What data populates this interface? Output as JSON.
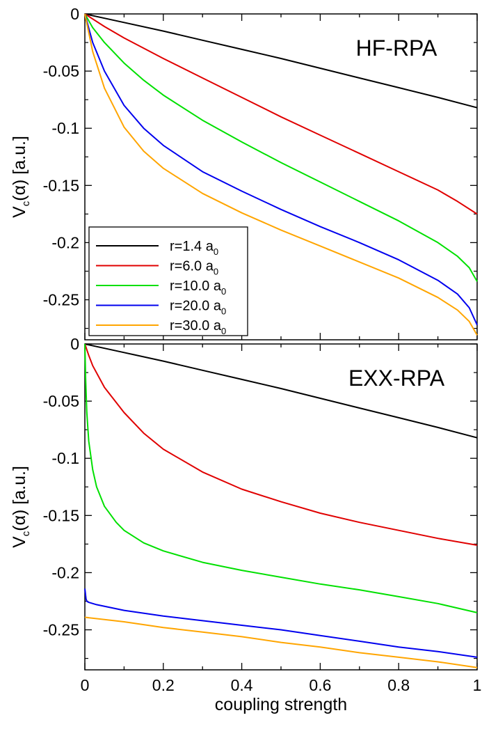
{
  "chart_data": [
    {
      "type": "line",
      "title": "HF-RPA",
      "xlabel": "",
      "ylabel": "V_c(α) [a.u.]",
      "xlim": [
        0,
        1
      ],
      "ylim": [
        -0.285,
        0
      ],
      "grid": false,
      "legend_position": "bottom-left",
      "y_ticks": [
        "0",
        "-0.05",
        "-0.1",
        "-0.15",
        "-0.2",
        "-0.25"
      ],
      "series": [
        {
          "name": "r=1.4 a0",
          "color": "#000000",
          "x": [
            0,
            0.1,
            0.2,
            0.3,
            0.4,
            0.5,
            0.6,
            0.7,
            0.8,
            0.9,
            1.0
          ],
          "y": [
            0,
            -0.0075,
            -0.015,
            -0.023,
            -0.031,
            -0.039,
            -0.0475,
            -0.056,
            -0.0645,
            -0.073,
            -0.082
          ]
        },
        {
          "name": "r=6.0 a0",
          "color": "#e00000",
          "x": [
            0,
            0.05,
            0.1,
            0.2,
            0.3,
            0.4,
            0.5,
            0.6,
            0.7,
            0.8,
            0.9,
            0.95,
            1.0
          ],
          "y": [
            0,
            -0.011,
            -0.021,
            -0.039,
            -0.056,
            -0.073,
            -0.09,
            -0.106,
            -0.122,
            -0.138,
            -0.154,
            -0.164,
            -0.175
          ]
        },
        {
          "name": "r=10.0 a0",
          "color": "#00e000",
          "x": [
            0,
            0.02,
            0.05,
            0.1,
            0.15,
            0.2,
            0.3,
            0.4,
            0.5,
            0.6,
            0.7,
            0.8,
            0.9,
            0.95,
            0.98,
            1.0
          ],
          "y": [
            0,
            -0.012,
            -0.025,
            -0.043,
            -0.058,
            -0.071,
            -0.093,
            -0.112,
            -0.13,
            -0.147,
            -0.164,
            -0.181,
            -0.2,
            -0.212,
            -0.222,
            -0.234
          ]
        },
        {
          "name": "r=20.0 a0",
          "color": "#0000ee",
          "x": [
            0,
            0.02,
            0.05,
            0.1,
            0.15,
            0.2,
            0.3,
            0.4,
            0.5,
            0.6,
            0.7,
            0.8,
            0.9,
            0.95,
            0.98,
            1.0
          ],
          "y": [
            0,
            -0.025,
            -0.05,
            -0.08,
            -0.1,
            -0.115,
            -0.138,
            -0.155,
            -0.171,
            -0.186,
            -0.2,
            -0.215,
            -0.233,
            -0.245,
            -0.257,
            -0.272
          ]
        },
        {
          "name": "r=30.0 a0",
          "color": "#ffa500",
          "x": [
            0,
            0.02,
            0.05,
            0.1,
            0.15,
            0.2,
            0.3,
            0.4,
            0.5,
            0.6,
            0.7,
            0.8,
            0.9,
            0.95,
            0.98,
            1.0
          ],
          "y": [
            0,
            -0.033,
            -0.065,
            -0.099,
            -0.12,
            -0.135,
            -0.157,
            -0.174,
            -0.189,
            -0.203,
            -0.217,
            -0.231,
            -0.248,
            -0.259,
            -0.269,
            -0.281
          ]
        }
      ]
    },
    {
      "type": "line",
      "title": "EXX-RPA",
      "xlabel": "coupling strength",
      "ylabel": "V_c(α) [a.u.]",
      "xlim": [
        0,
        1
      ],
      "ylim": [
        -0.285,
        0
      ],
      "grid": false,
      "x_ticks": [
        "0",
        "0.2",
        "0.4",
        "0.6",
        "0.8",
        "1"
      ],
      "y_ticks": [
        "0",
        "-0.05",
        "-0.1",
        "-0.15",
        "-0.2",
        "-0.25"
      ],
      "series": [
        {
          "name": "r=1.4 a0",
          "color": "#000000",
          "x": [
            0,
            0.1,
            0.2,
            0.3,
            0.4,
            0.5,
            0.6,
            0.7,
            0.8,
            0.9,
            1.0
          ],
          "y": [
            0,
            -0.0075,
            -0.015,
            -0.023,
            -0.031,
            -0.039,
            -0.0475,
            -0.056,
            -0.0645,
            -0.073,
            -0.082
          ]
        },
        {
          "name": "r=6.0 a0",
          "color": "#e00000",
          "x": [
            0,
            0.01,
            0.02,
            0.05,
            0.1,
            0.15,
            0.2,
            0.3,
            0.4,
            0.5,
            0.6,
            0.7,
            0.8,
            0.9,
            1.0
          ],
          "y": [
            0,
            -0.01,
            -0.019,
            -0.038,
            -0.06,
            -0.078,
            -0.092,
            -0.112,
            -0.127,
            -0.138,
            -0.148,
            -0.156,
            -0.163,
            -0.17,
            -0.176
          ]
        },
        {
          "name": "r=10.0 a0",
          "color": "#00e000",
          "x": [
            0,
            0.002,
            0.005,
            0.01,
            0.02,
            0.03,
            0.05,
            0.08,
            0.1,
            0.15,
            0.2,
            0.3,
            0.4,
            0.5,
            0.6,
            0.7,
            0.8,
            0.9,
            1.0
          ],
          "y": [
            0,
            -0.03,
            -0.06,
            -0.085,
            -0.11,
            -0.125,
            -0.142,
            -0.156,
            -0.163,
            -0.174,
            -0.181,
            -0.191,
            -0.198,
            -0.204,
            -0.21,
            -0.215,
            -0.221,
            -0.227,
            -0.235
          ]
        },
        {
          "name": "r=20.0 a0",
          "color": "#0000ee",
          "x": [
            0,
            0.003,
            0.005,
            0.01,
            0.03,
            0.1,
            0.2,
            0.3,
            0.4,
            0.5,
            0.6,
            0.7,
            0.8,
            0.9,
            1.0
          ],
          "y": [
            -0.214,
            -0.223,
            -0.225,
            -0.226,
            -0.228,
            -0.233,
            -0.238,
            -0.242,
            -0.246,
            -0.25,
            -0.255,
            -0.26,
            -0.265,
            -0.269,
            -0.274
          ]
        },
        {
          "name": "r=30.0 a0",
          "color": "#ffa500",
          "x": [
            0,
            0.1,
            0.2,
            0.3,
            0.4,
            0.5,
            0.6,
            0.7,
            0.8,
            0.9,
            1.0
          ],
          "y": [
            -0.239,
            -0.243,
            -0.248,
            -0.252,
            -0.256,
            -0.261,
            -0.265,
            -0.27,
            -0.274,
            -0.278,
            -0.283
          ]
        }
      ]
    }
  ],
  "legend": {
    "entries": [
      {
        "label": "r=1.4 a",
        "sub": "0",
        "color": "#000000"
      },
      {
        "label": "r=6.0 a",
        "sub": "0",
        "color": "#e00000"
      },
      {
        "label": "r=10.0 a",
        "sub": "0",
        "color": "#00e000"
      },
      {
        "label": "r=20.0 a",
        "sub": "0",
        "color": "#0000ee"
      },
      {
        "label": "r=30.0 a",
        "sub": "0",
        "color": "#ffa500"
      }
    ]
  },
  "ylabel_parts": {
    "main": "V",
    "sub": "c",
    "rest": "(α) [a.u.]"
  }
}
